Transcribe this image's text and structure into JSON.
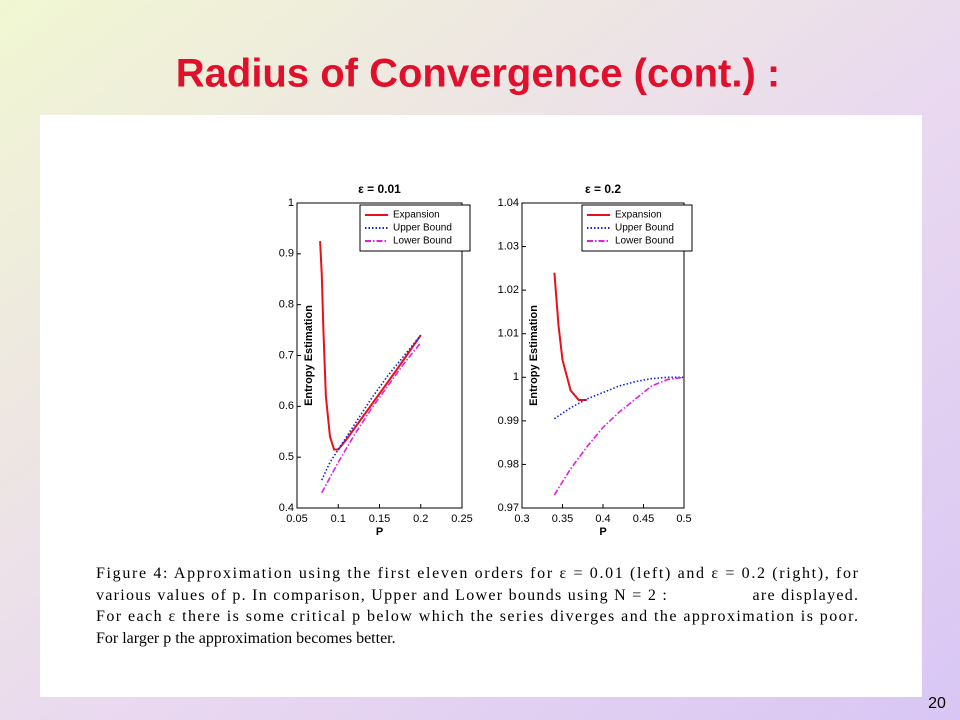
{
  "slide_title": "Radius of Convergence (cont.) :",
  "page_number": "20",
  "caption": [
    "Figure 4: Approximation using the first eleven orders for ε = 0.01 (left) and ε = 0.2 (right), for",
    "various values of p. In comparison, Upper and Lower bounds using N = 2 :                are displayed.",
    "For each ε there is some critical p below which the series diverges and the approximation is poor.",
    "For larger p the approximation becomes better."
  ],
  "chart_data": [
    {
      "type": "line",
      "title": "ε = 0.01",
      "x_label": "P",
      "y_label": "Entropy Estimation",
      "xlim": [
        0.05,
        0.25
      ],
      "xticks": [
        0.05,
        0.1,
        0.15,
        0.2,
        0.25
      ],
      "ylim": [
        0.4,
        1
      ],
      "yticks": [
        0.4,
        0.5,
        0.6,
        0.7,
        0.8,
        0.9,
        1
      ],
      "legend": "upper right",
      "series": [
        {
          "name": "Expansion",
          "color": "#e8101a",
          "style": "solid",
          "x": [
            0.078,
            0.08,
            0.082,
            0.085,
            0.09,
            0.095,
            0.1,
            0.11,
            0.13,
            0.15,
            0.17,
            0.2
          ],
          "values": [
            0.925,
            0.86,
            0.75,
            0.62,
            0.54,
            0.515,
            0.515,
            0.535,
            0.58,
            0.625,
            0.67,
            0.74
          ]
        },
        {
          "name": "Upper Bound",
          "color": "#1020e0",
          "style": "dotted",
          "x": [
            0.08,
            0.09,
            0.1,
            0.12,
            0.14,
            0.16,
            0.18,
            0.2
          ],
          "values": [
            0.455,
            0.49,
            0.515,
            0.565,
            0.615,
            0.66,
            0.7,
            0.74
          ]
        },
        {
          "name": "Lower Bound",
          "color": "#e020e0",
          "style": "dashdot",
          "x": [
            0.08,
            0.1,
            0.12,
            0.14,
            0.16,
            0.18,
            0.2
          ],
          "values": [
            0.43,
            0.49,
            0.545,
            0.595,
            0.64,
            0.685,
            0.725
          ]
        }
      ]
    },
    {
      "type": "line",
      "title": "ε = 0.2",
      "x_label": "P",
      "y_label": "Entropy Estimation",
      "xlim": [
        0.3,
        0.5
      ],
      "xticks": [
        0.3,
        0.35,
        0.4,
        0.45,
        0.5
      ],
      "ylim": [
        0.97,
        1.04
      ],
      "yticks": [
        0.97,
        0.98,
        0.99,
        1,
        1.01,
        1.02,
        1.03,
        1.04
      ],
      "legend": "upper right",
      "series": [
        {
          "name": "Expansion",
          "color": "#e8101a",
          "style": "solid",
          "x": [
            0.34,
            0.345,
            0.35,
            0.36,
            0.37,
            0.38
          ],
          "values": [
            1.024,
            1.012,
            1.004,
            0.997,
            0.9948,
            0.9948
          ]
        },
        {
          "name": "Upper Bound",
          "color": "#1020e0",
          "style": "dotted",
          "x": [
            0.34,
            0.36,
            0.38,
            0.4,
            0.42,
            0.44,
            0.46,
            0.48,
            0.5
          ],
          "values": [
            0.9905,
            0.993,
            0.995,
            0.9965,
            0.998,
            0.999,
            0.9997,
            1.0,
            1.0
          ]
        },
        {
          "name": "Lower Bound",
          "color": "#e020e0",
          "style": "dashdot",
          "x": [
            0.34,
            0.36,
            0.38,
            0.4,
            0.42,
            0.44,
            0.46,
            0.48,
            0.5
          ],
          "values": [
            0.973,
            0.979,
            0.984,
            0.9885,
            0.992,
            0.995,
            0.998,
            0.9995,
            1.0
          ]
        }
      ]
    }
  ]
}
